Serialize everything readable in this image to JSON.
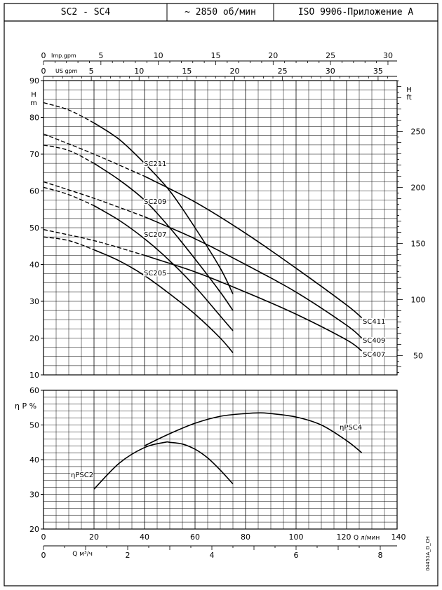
{
  "header": {
    "model_range": "SC2  -  SC4",
    "speed": "~ 2850 об/мин",
    "standard": "ISO 9906-Приложение А"
  },
  "doc_code": "04451A_D_CH",
  "chart_data": [
    {
      "type": "line",
      "name": "head_curves",
      "ylabel_left": [
        "H",
        "m"
      ],
      "ylabel_right": [
        "H",
        "ft"
      ],
      "xlabel_top_1": "Imp.gpm",
      "xlabel_top_2": "US gpm",
      "xlabel_bottom_1": "Q л/мин",
      "xlabel_bottom_2": "Q м³/ч",
      "ylim": [
        10,
        90
      ],
      "xlim_lpm": [
        0,
        140
      ],
      "y_ticks_m": [
        10,
        20,
        30,
        40,
        50,
        60,
        70,
        80,
        90
      ],
      "y_ticks_ft": [
        50,
        100,
        150,
        200,
        250
      ],
      "x_ticks_imp_gpm": [
        0,
        5,
        10,
        15,
        20,
        25,
        30
      ],
      "x_ticks_us_gpm": [
        0,
        5,
        10,
        15,
        20,
        25,
        30,
        35
      ],
      "x_ticks_lpm": [
        0,
        20,
        40,
        60,
        80,
        100,
        120,
        140
      ],
      "x_ticks_m3h": [
        0,
        2,
        4,
        6,
        8
      ],
      "grid": true,
      "series": [
        {
          "name": "SC211",
          "x": [
            0,
            10,
            20,
            30,
            40,
            50,
            60,
            70,
            75
          ],
          "y": [
            84,
            82,
            78.5,
            74,
            67.5,
            60,
            50,
            39,
            32
          ]
        },
        {
          "name": "SC209",
          "x": [
            0,
            10,
            20,
            30,
            40,
            50,
            60,
            70,
            75
          ],
          "y": [
            72.5,
            71,
            67.5,
            63,
            57.5,
            50,
            41.5,
            32.5,
            27.5
          ]
        },
        {
          "name": "SC207",
          "x": [
            0,
            10,
            20,
            30,
            40,
            50,
            60,
            70,
            75
          ],
          "y": [
            61,
            59,
            56,
            52,
            47,
            41,
            34,
            26,
            22
          ]
        },
        {
          "name": "SC205",
          "x": [
            0,
            10,
            20,
            30,
            40,
            50,
            60,
            70,
            75
          ],
          "y": [
            47.5,
            46.5,
            44,
            41,
            37,
            32,
            26.5,
            20,
            16
          ]
        },
        {
          "name": "SC411",
          "x": [
            0,
            20,
            40,
            60,
            80,
            100,
            120,
            126
          ],
          "y": [
            75.5,
            70,
            64,
            57,
            48.5,
            39,
            29,
            25.5
          ]
        },
        {
          "name": "SC409",
          "x": [
            0,
            20,
            40,
            60,
            80,
            100,
            120,
            126
          ],
          "y": [
            62.5,
            58,
            53,
            47,
            40,
            32.5,
            23.5,
            20
          ]
        },
        {
          "name": "SC407",
          "x": [
            0,
            20,
            40,
            60,
            80,
            100,
            120,
            126
          ],
          "y": [
            49.5,
            46.5,
            42.5,
            38,
            32.5,
            26.5,
            19.5,
            16.5
          ]
        }
      ]
    },
    {
      "type": "line",
      "name": "efficiency_curves",
      "ylabel_left": "η P %",
      "ylim": [
        20,
        60
      ],
      "y_ticks": [
        20,
        30,
        40,
        50,
        60
      ],
      "xlim_lpm": [
        0,
        140
      ],
      "grid": true,
      "series": [
        {
          "name": "ηPSC2",
          "x": [
            20,
            30,
            40,
            48,
            50,
            55,
            60,
            65,
            70,
            75
          ],
          "y": [
            31.5,
            39,
            43.5,
            45,
            45,
            44.5,
            43,
            40.5,
            37,
            33
          ]
        },
        {
          "name": "ηPSC4",
          "x": [
            40,
            50,
            60,
            70,
            80,
            86,
            90,
            100,
            110,
            120,
            126
          ],
          "y": [
            44,
            47.5,
            50.5,
            52.5,
            53.3,
            53.5,
            53.3,
            52.3,
            50,
            45.5,
            42
          ]
        }
      ]
    }
  ]
}
